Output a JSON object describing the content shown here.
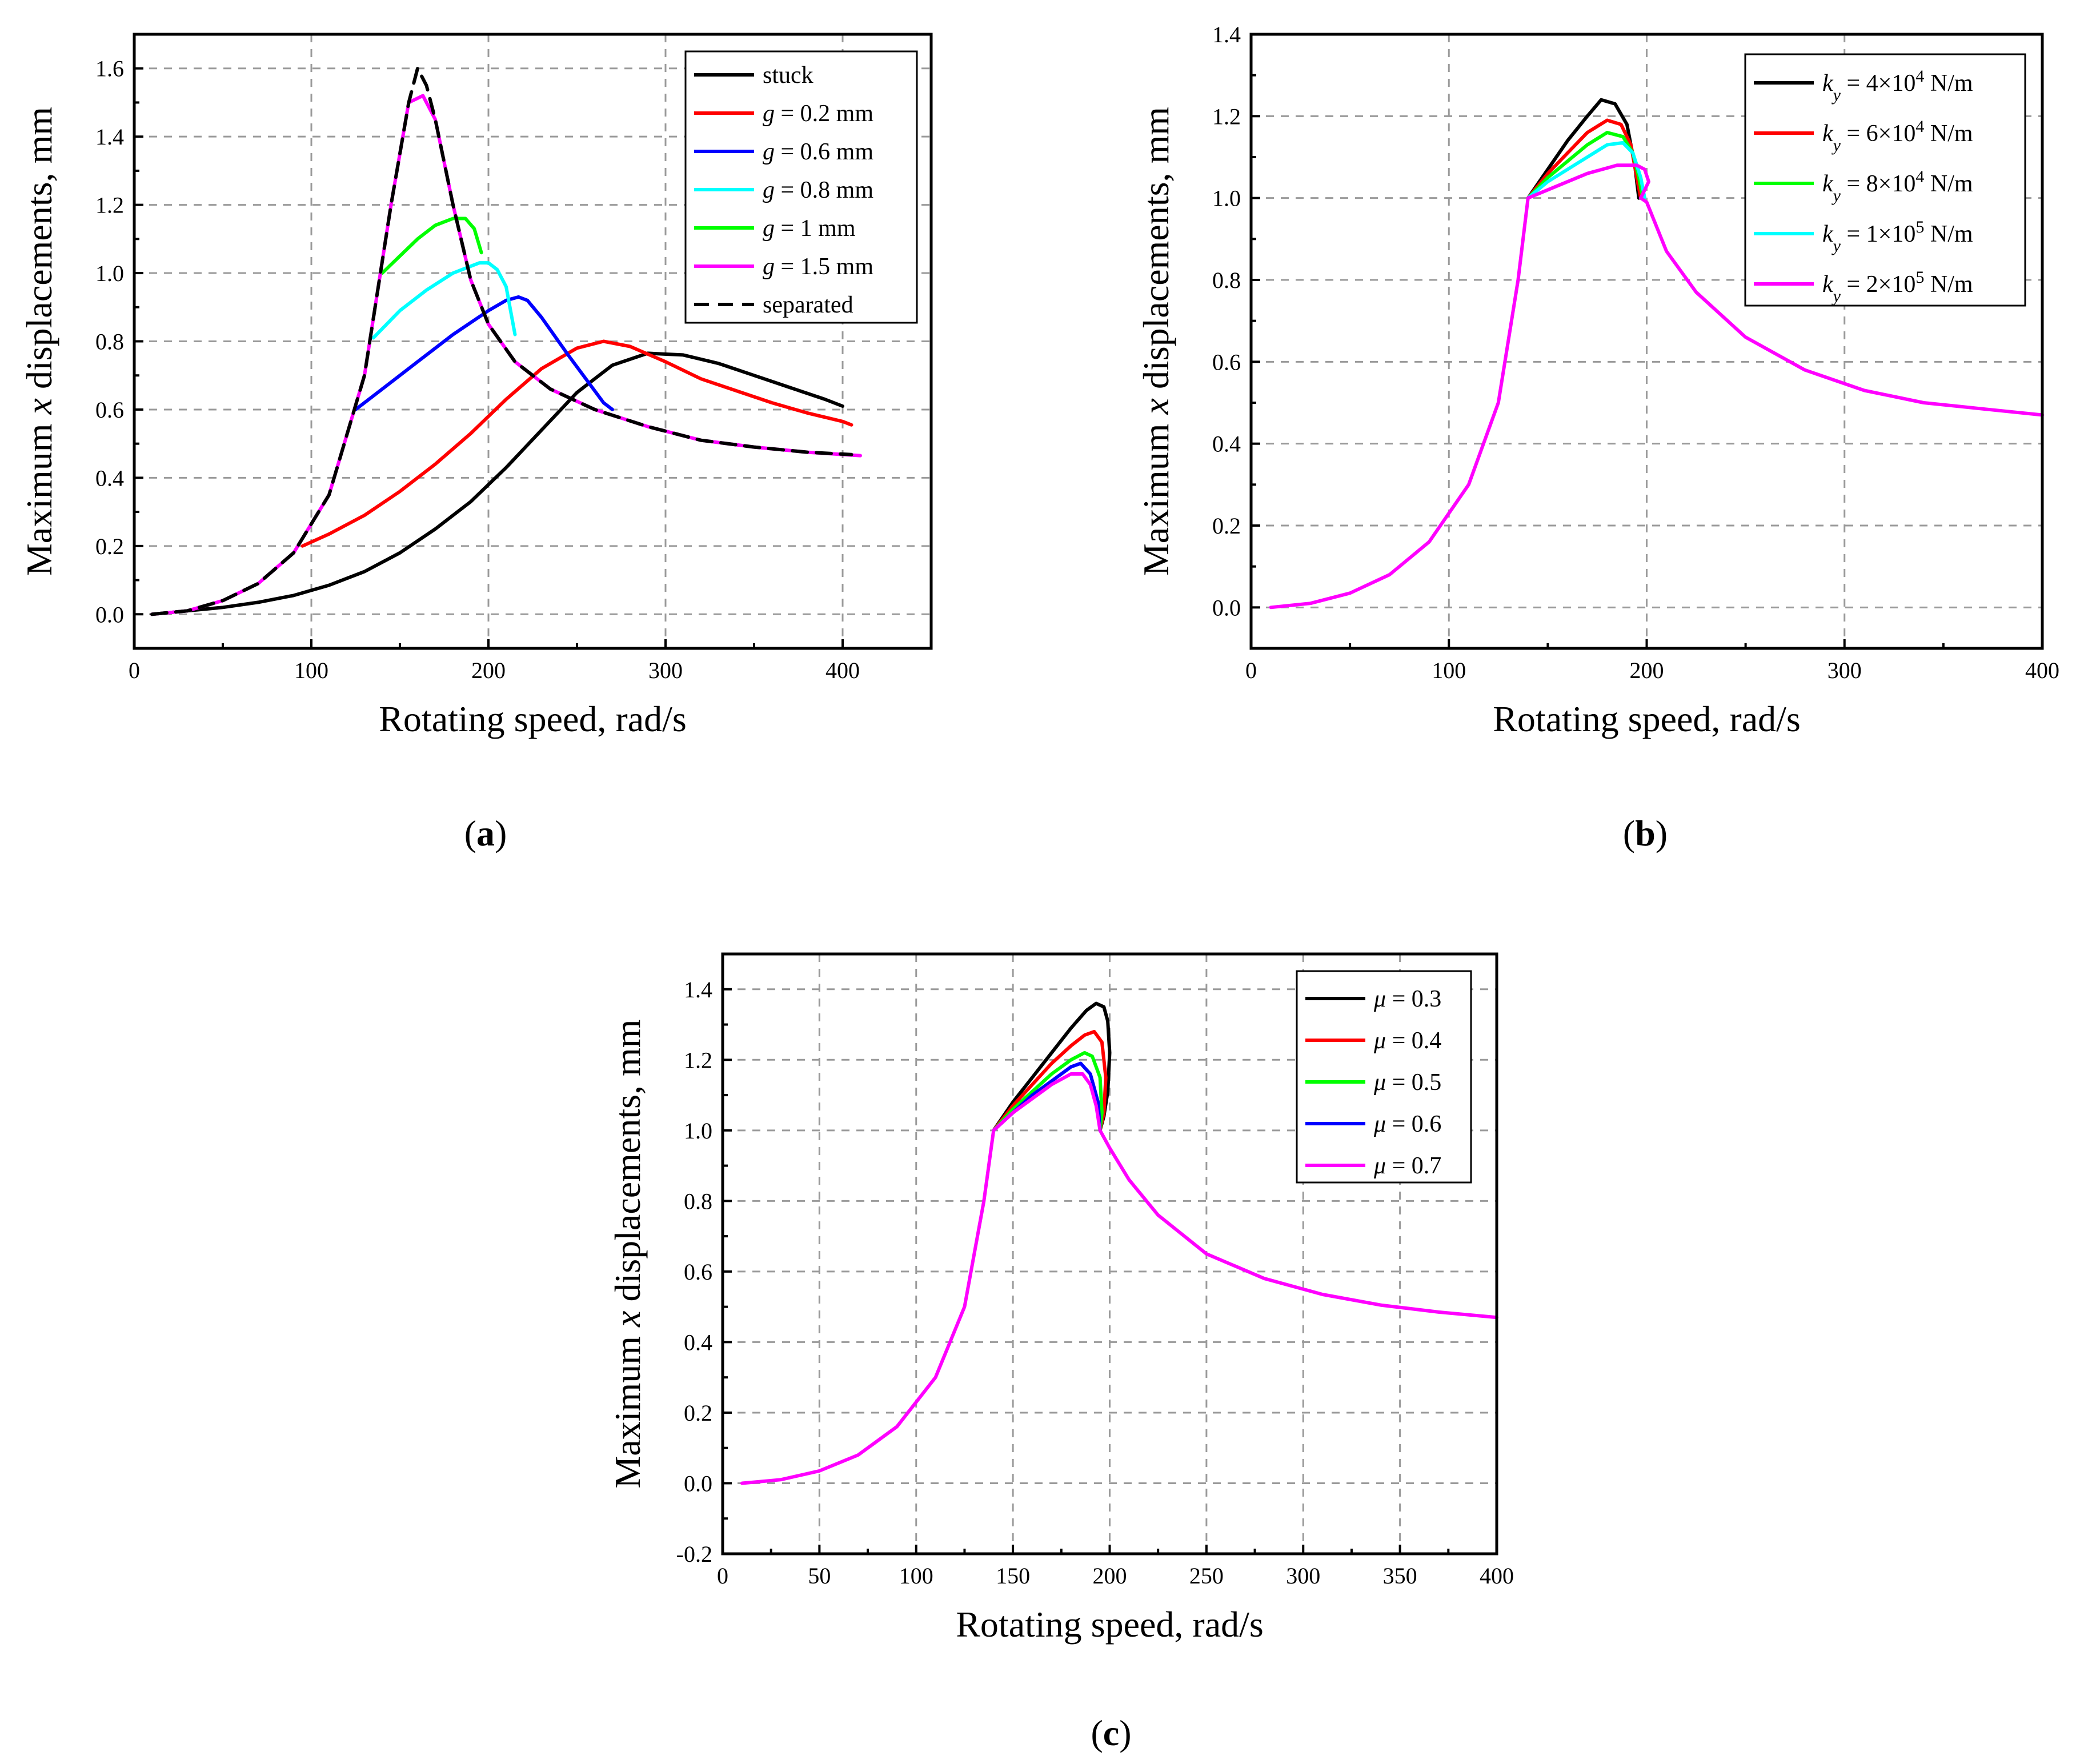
{
  "figure": {
    "panels": [
      "a",
      "b",
      "c"
    ]
  },
  "chart_data": [
    {
      "id": "a",
      "type": "line",
      "caption": "a",
      "xlabel": "Rotating speed, rad/s",
      "ylabel_prefix": "Maximum ",
      "ylabel_var": "x",
      "ylabel_suffix": " displacements, mm",
      "xlim": [
        0,
        450
      ],
      "ylim": [
        -0.1,
        1.7
      ],
      "xticks": [
        0,
        100,
        200,
        300,
        400
      ],
      "yticks": [
        0.0,
        0.2,
        0.4,
        0.6,
        0.8,
        1.0,
        1.2,
        1.4,
        1.6
      ],
      "tick_decimals": 1,
      "grid": true,
      "legend_position": "top-right",
      "series": [
        {
          "name": "stuck",
          "color": "#000000",
          "dash": false,
          "x": [
            10,
            30,
            50,
            70,
            90,
            110,
            130,
            150,
            170,
            190,
            210,
            230,
            250,
            270,
            290,
            310,
            330,
            350,
            370,
            390,
            400
          ],
          "y": [
            0.0,
            0.01,
            0.02,
            0.035,
            0.055,
            0.085,
            0.125,
            0.18,
            0.25,
            0.33,
            0.43,
            0.54,
            0.65,
            0.73,
            0.765,
            0.76,
            0.735,
            0.7,
            0.665,
            0.63,
            0.61
          ]
        },
        {
          "name": "g = 0.2 mm",
          "label_var": "g",
          "label_rest": " = 0.2 mm",
          "color": "#ff0000",
          "dash": false,
          "x": [
            95,
            110,
            130,
            150,
            170,
            190,
            210,
            230,
            250,
            265,
            280,
            300,
            320,
            340,
            360,
            380,
            400,
            405
          ],
          "y": [
            0.2,
            0.235,
            0.29,
            0.36,
            0.44,
            0.53,
            0.63,
            0.72,
            0.78,
            0.8,
            0.785,
            0.74,
            0.69,
            0.655,
            0.62,
            0.59,
            0.565,
            0.555
          ]
        },
        {
          "name": "g = 0.6 mm",
          "label_var": "g",
          "label_rest": " = 0.6 mm",
          "color": "#0000ff",
          "dash": false,
          "x": [
            125,
            140,
            160,
            180,
            200,
            210,
            217,
            222,
            230,
            245,
            265,
            270
          ],
          "y": [
            0.6,
            0.66,
            0.74,
            0.82,
            0.89,
            0.92,
            0.93,
            0.92,
            0.87,
            0.76,
            0.62,
            0.6
          ]
        },
        {
          "name": "g = 0.8 mm",
          "label_var": "g",
          "label_rest": " = 0.8 mm",
          "color": "#00ffff",
          "dash": false,
          "x": [
            135,
            150,
            165,
            180,
            195,
            200,
            205,
            210,
            215
          ],
          "y": [
            0.81,
            0.89,
            0.95,
            1.0,
            1.03,
            1.03,
            1.01,
            0.96,
            0.82
          ]
        },
        {
          "name": "g = 1 mm",
          "label_var": "g",
          "label_rest": " = 1 mm",
          "color": "#00ff00",
          "dash": false,
          "x": [
            140,
            150,
            160,
            170,
            180,
            187,
            192,
            196
          ],
          "y": [
            1.0,
            1.05,
            1.1,
            1.14,
            1.16,
            1.16,
            1.13,
            1.06
          ]
        },
        {
          "name": "g = 1.5 mm",
          "label_var": "g",
          "label_rest": " = 1.5 mm",
          "color": "#ff00ff",
          "dash": false,
          "x": [
            10,
            30,
            50,
            70,
            90,
            110,
            130,
            145,
            155,
            163,
            170,
            180,
            190,
            200,
            215,
            235,
            260,
            290,
            320,
            350,
            380,
            410
          ],
          "y": [
            0.0,
            0.01,
            0.04,
            0.09,
            0.18,
            0.35,
            0.7,
            1.2,
            1.5,
            1.52,
            1.45,
            1.2,
            0.98,
            0.85,
            0.74,
            0.66,
            0.6,
            0.55,
            0.51,
            0.49,
            0.475,
            0.465
          ]
        },
        {
          "name": "separated",
          "color": "#000000",
          "dash": true,
          "x": [
            10,
            30,
            50,
            70,
            90,
            110,
            130,
            145,
            155,
            160,
            165,
            170,
            180,
            190,
            200,
            215,
            235,
            260,
            290,
            320,
            350,
            380,
            405
          ],
          "y": [
            0.0,
            0.01,
            0.04,
            0.09,
            0.18,
            0.35,
            0.7,
            1.2,
            1.5,
            1.6,
            1.55,
            1.45,
            1.2,
            0.98,
            0.85,
            0.74,
            0.66,
            0.6,
            0.55,
            0.51,
            0.49,
            0.475,
            0.468
          ]
        }
      ]
    },
    {
      "id": "b",
      "type": "line",
      "caption": "b",
      "xlabel": "Rotating speed, rad/s",
      "ylabel_prefix": "Maximum ",
      "ylabel_var": "x",
      "ylabel_suffix": " displacements, mm",
      "xlim": [
        0,
        400
      ],
      "ylim": [
        -0.1,
        1.4
      ],
      "xticks": [
        0,
        100,
        200,
        300,
        400
      ],
      "yticks": [
        0.0,
        0.2,
        0.4,
        0.6,
        0.8,
        1.0,
        1.2,
        1.4
      ],
      "tick_decimals": 1,
      "grid": true,
      "legend_position": "top-right",
      "series": [
        {
          "name": "ky = 4×10^4 N/m",
          "label_var": "k",
          "label_sub": "y",
          "label_base": " = 4×10",
          "label_exp": "4",
          "label_unit": " N/m",
          "color": "#000000",
          "dash": false,
          "x": [
            140,
            150,
            160,
            170,
            177,
            184,
            190,
            194,
            196
          ],
          "y": [
            1.0,
            1.07,
            1.14,
            1.2,
            1.24,
            1.23,
            1.18,
            1.08,
            1.0
          ]
        },
        {
          "name": "ky = 6×10^4 N/m",
          "label_var": "k",
          "label_sub": "y",
          "label_base": " = 6×10",
          "label_exp": "4",
          "label_unit": " N/m",
          "color": "#ff0000",
          "dash": false,
          "x": [
            140,
            150,
            160,
            170,
            180,
            187,
            192,
            195,
            197
          ],
          "y": [
            1.0,
            1.06,
            1.11,
            1.16,
            1.19,
            1.18,
            1.13,
            1.05,
            1.0
          ]
        },
        {
          "name": "ky = 8×10^4 N/m",
          "label_var": "k",
          "label_sub": "y",
          "label_base": " = 8×10",
          "label_exp": "4",
          "label_unit": " N/m",
          "color": "#00ff00",
          "dash": false,
          "x": [
            140,
            150,
            160,
            170,
            180,
            188,
            193,
            196,
            198
          ],
          "y": [
            1.0,
            1.05,
            1.09,
            1.13,
            1.16,
            1.15,
            1.11,
            1.05,
            1.0
          ]
        },
        {
          "name": "ky = 1×10^5 N/m",
          "label_var": "k",
          "label_sub": "y",
          "label_base": " = 1×10",
          "label_exp": "5",
          "label_unit": " N/m",
          "color": "#00ffff",
          "dash": false,
          "x": [
            140,
            150,
            160,
            170,
            180,
            188,
            193,
            197,
            199
          ],
          "y": [
            1.0,
            1.04,
            1.07,
            1.1,
            1.13,
            1.135,
            1.11,
            1.05,
            1.0
          ]
        },
        {
          "name": "ky = 2×10^5 N/m",
          "label_var": "k",
          "label_sub": "y",
          "label_base": " = 2×10",
          "label_exp": "5",
          "label_unit": " N/m",
          "color": "#ff00ff",
          "dash": false,
          "x": [
            10,
            30,
            50,
            70,
            90,
            110,
            125,
            135,
            140,
            155,
            170,
            185,
            195,
            199,
            201,
            197,
            200,
            210,
            225,
            250,
            280,
            310,
            340,
            370,
            400
          ],
          "y": [
            0.0,
            0.01,
            0.035,
            0.08,
            0.16,
            0.3,
            0.5,
            0.8,
            1.0,
            1.03,
            1.06,
            1.08,
            1.08,
            1.07,
            1.04,
            1.0,
            0.99,
            0.87,
            0.77,
            0.66,
            0.58,
            0.53,
            0.5,
            0.485,
            0.47
          ]
        }
      ]
    },
    {
      "id": "c",
      "type": "line",
      "caption": "c",
      "xlabel": "Rotating speed, rad/s",
      "ylabel_prefix": "Maximum ",
      "ylabel_var": "x",
      "ylabel_suffix": " displacements, mm",
      "xlim": [
        0,
        400
      ],
      "ylim": [
        -0.2,
        1.5
      ],
      "xticks": [
        0,
        50,
        100,
        150,
        200,
        250,
        300,
        350,
        400
      ],
      "yticks": [
        -0.2,
        0.0,
        0.2,
        0.4,
        0.6,
        0.8,
        1.0,
        1.2,
        1.4
      ],
      "tick_decimals": 1,
      "grid": true,
      "legend_position": "top-right",
      "series": [
        {
          "name": "μ = 0.3",
          "label_var": "μ",
          "label_rest": " = 0.3",
          "color": "#000000",
          "dash": false,
          "x": [
            140,
            150,
            160,
            170,
            180,
            188,
            193,
            197,
            199,
            200,
            199,
            197,
            195
          ],
          "y": [
            1.0,
            1.08,
            1.15,
            1.22,
            1.29,
            1.34,
            1.36,
            1.35,
            1.31,
            1.22,
            1.11,
            1.04,
            1.0
          ]
        },
        {
          "name": "μ = 0.4",
          "label_var": "μ",
          "label_rest": " = 0.4",
          "color": "#ff0000",
          "dash": false,
          "x": [
            140,
            150,
            160,
            170,
            180,
            187,
            192,
            196,
            198,
            197,
            195
          ],
          "y": [
            1.0,
            1.07,
            1.13,
            1.19,
            1.24,
            1.27,
            1.28,
            1.25,
            1.15,
            1.05,
            1.0
          ]
        },
        {
          "name": "μ = 0.5",
          "label_var": "μ",
          "label_rest": " = 0.5",
          "color": "#00ff00",
          "dash": false,
          "x": [
            140,
            150,
            160,
            170,
            180,
            187,
            191,
            195,
            196,
            195
          ],
          "y": [
            1.0,
            1.06,
            1.11,
            1.16,
            1.2,
            1.22,
            1.21,
            1.15,
            1.05,
            1.0
          ]
        },
        {
          "name": "μ = 0.6",
          "label_var": "μ",
          "label_rest": " = 0.6",
          "color": "#0000ff",
          "dash": false,
          "x": [
            140,
            150,
            160,
            170,
            180,
            185,
            190,
            194,
            195
          ],
          "y": [
            1.0,
            1.05,
            1.1,
            1.14,
            1.18,
            1.19,
            1.16,
            1.08,
            1.0
          ]
        },
        {
          "name": "μ = 0.7",
          "label_var": "μ",
          "label_rest": " = 0.7",
          "color": "#ff00ff",
          "dash": false,
          "x": [
            10,
            30,
            50,
            70,
            90,
            110,
            125,
            135,
            140,
            150,
            160,
            170,
            180,
            186,
            190,
            193,
            195,
            200,
            210,
            225,
            250,
            280,
            310,
            340,
            370,
            400
          ],
          "y": [
            0.0,
            0.01,
            0.035,
            0.08,
            0.16,
            0.3,
            0.5,
            0.8,
            1.0,
            1.05,
            1.09,
            1.13,
            1.16,
            1.16,
            1.13,
            1.07,
            1.0,
            0.95,
            0.86,
            0.76,
            0.65,
            0.58,
            0.535,
            0.505,
            0.485,
            0.47
          ]
        }
      ]
    }
  ]
}
